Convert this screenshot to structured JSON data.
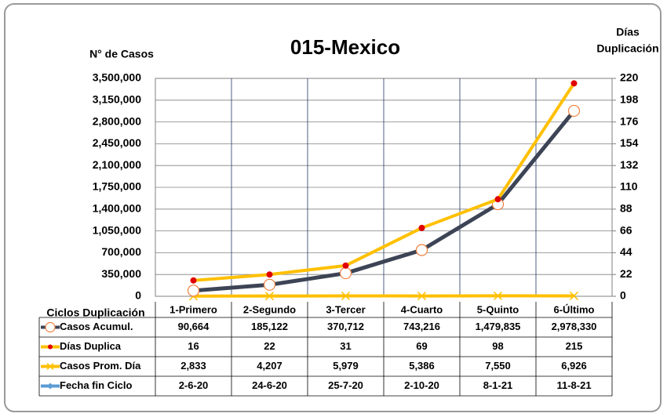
{
  "chart_data": {
    "type": "line",
    "title": "015-Mexico",
    "y_label": "N° de Casos",
    "y2_label": [
      "Días",
      "Duplicación"
    ],
    "table_label": "Ciclos Duplicación",
    "categories": [
      "1-Primero",
      "2-Segundo",
      "3-Tercer",
      "4-Cuarto",
      "5-Quinto",
      "6-Último"
    ],
    "ylim": [
      0,
      3500000
    ],
    "yticks": [
      {
        "value": 0,
        "label": "0"
      },
      {
        "value": 350000,
        "label": "350,000"
      },
      {
        "value": 700000,
        "label": "700,000"
      },
      {
        "value": 1050000,
        "label": "1,050,000"
      },
      {
        "value": 1400000,
        "label": "1,400,000"
      },
      {
        "value": 1750000,
        "label": "1,750,000"
      },
      {
        "value": 2100000,
        "label": "2,100,000"
      },
      {
        "value": 2450000,
        "label": "2,450,000"
      },
      {
        "value": 2800000,
        "label": "2,800,000"
      },
      {
        "value": 3150000,
        "label": "3,150,000"
      },
      {
        "value": 3500000,
        "label": "3,500,000"
      }
    ],
    "y2lim": [
      0,
      220
    ],
    "y2ticks": [
      0,
      22,
      44,
      66,
      88,
      110,
      132,
      154,
      176,
      198,
      220
    ],
    "grid": true,
    "series": [
      {
        "name": "Casos Acumul.",
        "color": "#3c4455",
        "marker": "circle-open",
        "marker_color": "#f08040",
        "values": [
          90664,
          185122,
          370712,
          743216,
          1479835,
          2978330
        ],
        "value_labels": [
          "90,664",
          "185,122",
          "370,712",
          "743,216",
          "1,479,835",
          "2,978,330"
        ]
      },
      {
        "name": "Días Duplica",
        "color": "#ffc000",
        "marker": "circle",
        "marker_color": "#e00000",
        "axis": "y2",
        "values": [
          16,
          22,
          31,
          69,
          98,
          215
        ]
      },
      {
        "name": "Casos Prom. Día",
        "color": "#ffc000",
        "marker": "x",
        "marker_color": "#ffc000",
        "values": [
          2833,
          4207,
          5979,
          5386,
          7550,
          6926
        ],
        "value_labels": [
          "2,833",
          "4,207",
          "5,979",
          "5,386",
          "7,550",
          "6,926"
        ]
      },
      {
        "name": "Fecha fin Ciclo",
        "color": "#5b9bd5",
        "marker": "diamond",
        "marker_color": "#5b9bd5",
        "values": [
          "2-6-20",
          "24-6-20",
          "25-7-20",
          "2-10-20",
          "8-1-21",
          "11-8-21"
        ]
      }
    ]
  }
}
